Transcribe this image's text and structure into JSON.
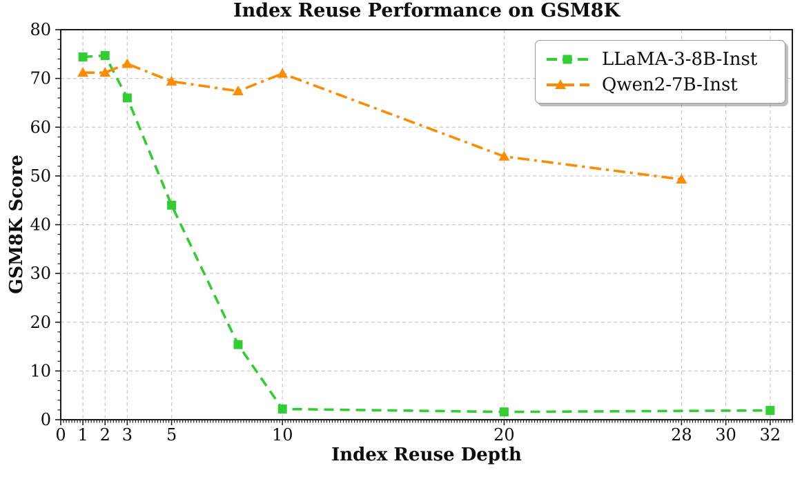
{
  "chart_data": {
    "type": "line",
    "title": "Index Reuse Performance on GSM8K",
    "xlabel": "Index Reuse Depth",
    "ylabel": "GSM8K Score",
    "xlim": [
      0,
      33
    ],
    "ylim": [
      0,
      80
    ],
    "x_ticks": [
      0,
      1,
      2,
      3,
      5,
      10,
      20,
      28,
      30,
      32
    ],
    "y_ticks": [
      0,
      10,
      20,
      30,
      40,
      50,
      60,
      70,
      80
    ],
    "x_minor_step": 0.125,
    "y_minor_step": 2,
    "grid": {
      "show": true,
      "style": "dashed",
      "color": "#c9c9c9"
    },
    "legend": {
      "position": "upper right"
    },
    "colors": {
      "axis": "#1a1a1a",
      "tick_label": "#0d0d0d"
    },
    "series": [
      {
        "name": "LLaMA-3-8B-Inst",
        "color": "#32CD32",
        "linestyle": "dashed",
        "marker": "square",
        "x": [
          1,
          2,
          3,
          5,
          8,
          10,
          20,
          32
        ],
        "y": [
          74.4,
          74.7,
          66.0,
          44.0,
          15.4,
          2.2,
          1.6,
          1.9
        ]
      },
      {
        "name": "Qwen2-7B-Inst",
        "color": "#FF8C00",
        "linestyle": "dashdot",
        "marker": "triangle",
        "x": [
          1,
          2,
          3,
          5,
          8,
          10,
          20,
          28
        ],
        "y": [
          71.2,
          71.2,
          73.0,
          69.4,
          67.4,
          71.0,
          54.0,
          49.3
        ]
      }
    ]
  }
}
